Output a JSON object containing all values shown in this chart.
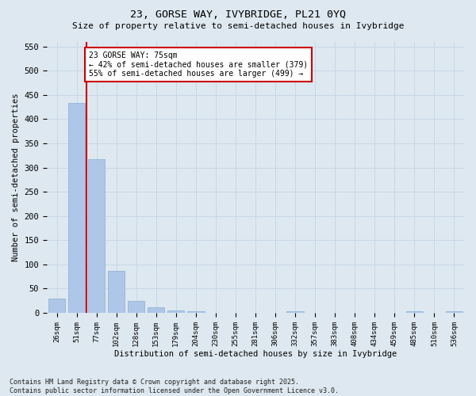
{
  "title1": "23, GORSE WAY, IVYBRIDGE, PL21 0YQ",
  "title2": "Size of property relative to semi-detached houses in Ivybridge",
  "xlabel": "Distribution of semi-detached houses by size in Ivybridge",
  "ylabel": "Number of semi-detached properties",
  "categories": [
    "26sqm",
    "51sqm",
    "77sqm",
    "102sqm",
    "128sqm",
    "153sqm",
    "179sqm",
    "204sqm",
    "230sqm",
    "255sqm",
    "281sqm",
    "306sqm",
    "332sqm",
    "357sqm",
    "383sqm",
    "408sqm",
    "434sqm",
    "459sqm",
    "485sqm",
    "510sqm",
    "536sqm"
  ],
  "values": [
    30,
    433,
    317,
    87,
    25,
    11,
    5,
    3,
    0,
    0,
    0,
    0,
    4,
    0,
    0,
    0,
    0,
    0,
    3,
    0,
    3
  ],
  "bar_color": "#aec6e8",
  "bar_edge_color": "#8aafd4",
  "property_line_color": "#cc0000",
  "property_line_xidx": 2,
  "annotation_text": "23 GORSE WAY: 75sqm\n← 42% of semi-detached houses are smaller (379)\n55% of semi-detached houses are larger (499) →",
  "annotation_box_color": "#ffffff",
  "annotation_box_edge": "#cc0000",
  "ylim": [
    0,
    560
  ],
  "yticks": [
    0,
    50,
    100,
    150,
    200,
    250,
    300,
    350,
    400,
    450,
    500,
    550
  ],
  "grid_color": "#c8d8e8",
  "background_color": "#dde8f0",
  "footer1": "Contains HM Land Registry data © Crown copyright and database right 2025.",
  "footer2": "Contains public sector information licensed under the Open Government Licence v3.0."
}
